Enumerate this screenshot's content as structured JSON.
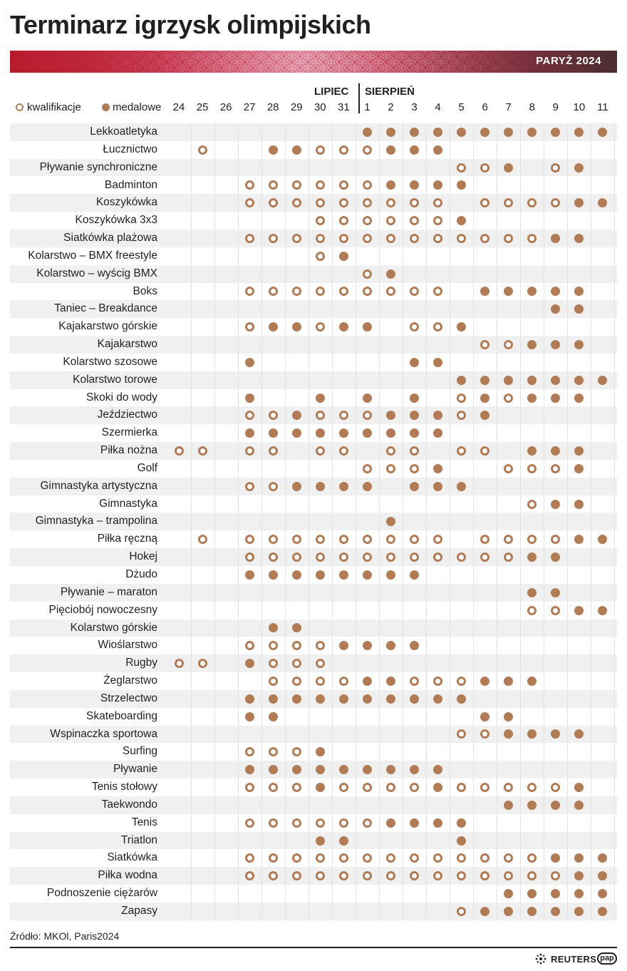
{
  "title": "Terminarz igrzysk olimpijskich",
  "banner_label": "PARYŻ 2024",
  "legend": {
    "qualification": "kwalifikacje",
    "medal": "medalowe"
  },
  "colors": {
    "marker": "#b07b55",
    "row_shade": "#f0f0f0",
    "banner_start": "#b71c2c",
    "banner_end": "#4a2e32"
  },
  "source": "Źródło: MKOl, Paris2024",
  "footer": {
    "agency_1": "REUTERS",
    "agency_2": "pap",
    "agency_1_icon": "reuters-dots-icon"
  },
  "chart_data": {
    "type": "table",
    "months": [
      {
        "label": "LIPIEC",
        "days": [
          "24",
          "25",
          "26",
          "27",
          "28",
          "29",
          "30",
          "31"
        ]
      },
      {
        "label": "SIERPIEŃ",
        "days": [
          "1",
          "2",
          "3",
          "4",
          "5",
          "6",
          "7",
          "8",
          "9",
          "10",
          "11"
        ]
      }
    ],
    "days": [
      "24",
      "25",
      "26",
      "27",
      "28",
      "29",
      "30",
      "31",
      "1",
      "2",
      "3",
      "4",
      "5",
      "6",
      "7",
      "8",
      "9",
      "10",
      "11"
    ],
    "legend_codes": {
      "q": "kwalifikacje",
      "m": "medalowe"
    },
    "rows": [
      {
        "sport": "Lekkoatletyka",
        "schedule": "........mmmmmmmmmmm"
      },
      {
        "sport": "Łucznictwo",
        "schedule": ".q..mmqqqmmm......."
      },
      {
        "sport": "Pływanie synchroniczne",
        "schedule": "............qqm.qm."
      },
      {
        "sport": "Badminton",
        "schedule": "...qqqqqqmmmm......"
      },
      {
        "sport": "Koszykówka",
        "schedule": "...qqqqqqqqq.qqqqmm"
      },
      {
        "sport": "Koszykówka 3x3",
        "schedule": "......qqqqqqm......"
      },
      {
        "sport": "Siatkówka plażowa",
        "schedule": "...qqqqqqqqqqqqqmm."
      },
      {
        "sport": "Kolarstwo – BMX freestyle",
        "schedule": "......qm..........."
      },
      {
        "sport": "Kolarstwo – wyścig BMX",
        "schedule": "........qm........."
      },
      {
        "sport": "Boks",
        "schedule": "...qqqqqqqqq.mmmmm."
      },
      {
        "sport": "Taniec – Breakdance",
        "schedule": "................mm."
      },
      {
        "sport": "Kajakarstwo górskie",
        "schedule": "...qmmqmm.qqm......"
      },
      {
        "sport": "Kajakarstwo",
        "schedule": ".............qqmmm."
      },
      {
        "sport": "Kolarstwo szosowe",
        "schedule": "...m......mm......."
      },
      {
        "sport": "Kolarstwo torowe",
        "schedule": "............mmmmmmm"
      },
      {
        "sport": "Skoki do wody",
        "schedule": "...m..m.m.m.qmqmmm."
      },
      {
        "sport": "Jeździectwo",
        "schedule": "...qqmqqqmmmqm....."
      },
      {
        "sport": "Szermierka",
        "schedule": "...mmmmmmmmm......."
      },
      {
        "sport": "Piłka nożna",
        "schedule": "qq.qq.qq.qq.qq.mmm."
      },
      {
        "sport": "Golf",
        "schedule": "........qqqm..qqqm."
      },
      {
        "sport": "Gimnastyka artystyczna",
        "schedule": "...qqmmmm.mmm......"
      },
      {
        "sport": "Gimnastyka",
        "schedule": "...............qmm."
      },
      {
        "sport": "Gimnastyka – trampolina",
        "schedule": ".........m........."
      },
      {
        "sport": "Piłka ręczną",
        "schedule": ".q.qqqqqqqqq.qqqqmm"
      },
      {
        "sport": "Hokej",
        "schedule": "...qqqqqqqqqqqqmm.."
      },
      {
        "sport": "Dżudo",
        "schedule": "...mmmmmmmm........"
      },
      {
        "sport": "Pływanie – maraton",
        "schedule": "...............mm.."
      },
      {
        "sport": "Pięciobój nowoczesny",
        "schedule": "...............qqmm"
      },
      {
        "sport": "Kolarstwo górskie",
        "schedule": "....mm............."
      },
      {
        "sport": "Wioślarstwo",
        "schedule": "...qqqqmmmm........"
      },
      {
        "sport": "Rugby",
        "schedule": "qq.mqqq............"
      },
      {
        "sport": "Żeglarstwo",
        "schedule": "....qqqqmmqqqmmm..."
      },
      {
        "sport": "Strzelectwo",
        "schedule": "...mmmmmmmmmm......"
      },
      {
        "sport": "Skateboarding",
        "schedule": "...mm........mm...."
      },
      {
        "sport": "Wspinaczka sportowa",
        "schedule": "............qqmmmm."
      },
      {
        "sport": "Surfing",
        "schedule": "...qqqm............"
      },
      {
        "sport": "Pływanie",
        "schedule": "...mmmmmmmmm......."
      },
      {
        "sport": "Tenis stołowy",
        "schedule": "...qqqmqqqqmqqqqqm."
      },
      {
        "sport": "Taekwondo",
        "schedule": "..............mmmm."
      },
      {
        "sport": "Tenis",
        "schedule": "...qqqqqqmmmm......"
      },
      {
        "sport": "Triatlon",
        "schedule": "......mm....m......"
      },
      {
        "sport": "Siatkówka",
        "schedule": "...qqqqqqqqqqqqqmmm"
      },
      {
        "sport": "Piłka wodna",
        "schedule": "...qqqqqqqqqqqqqqmm"
      },
      {
        "sport": "Podnoszenie ciężarów",
        "schedule": "..............mmmmm"
      },
      {
        "sport": "Zapasy",
        "schedule": "............qmmmmmm"
      }
    ]
  }
}
